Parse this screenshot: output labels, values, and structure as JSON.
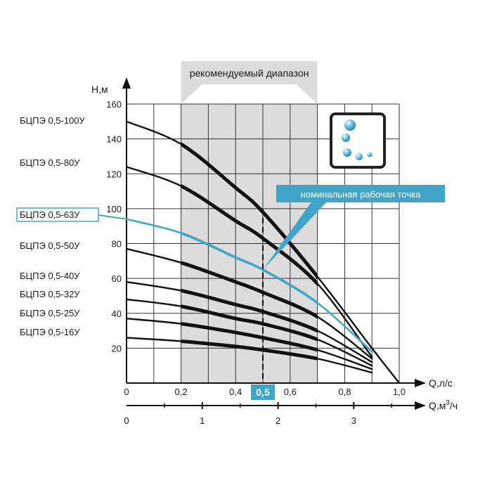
{
  "chart_data": {
    "type": "line",
    "recommended_range_label": "рекомендуемый диапазон",
    "recommended_range_x": [
      0.2,
      0.7
    ],
    "nominal_point_label": "номинальная рабочая точка",
    "nominal_flow": 0.5,
    "nominal_flow_label": "0,5",
    "y_axis": {
      "label": "Н,м",
      "range": [
        0,
        160
      ],
      "ticks": [
        "20",
        "40",
        "60",
        "80",
        "100",
        "120",
        "140",
        "160"
      ]
    },
    "x_axis": {
      "label": "Q,л/с",
      "range": [
        0,
        1.0
      ],
      "ticks": [
        "0",
        "0,2",
        "0,4",
        "0,6",
        "0,8",
        "1,0"
      ]
    },
    "x_axis2": {
      "label": "Q,м³/ч",
      "range": [
        0,
        3.6
      ],
      "ticks": [
        "0",
        "1",
        "2",
        "3"
      ]
    },
    "grid": true,
    "highlight_color": "#41a5c9",
    "series": [
      {
        "name": "БЦПЭ 0,5-100У",
        "x": [
          0,
          0.2,
          0.4,
          0.5,
          0.7,
          0.9,
          1.0
        ],
        "y": [
          150,
          137,
          112,
          98,
          61,
          20,
          0
        ],
        "highlight": false
      },
      {
        "name": "БЦПЭ 0,5-80У",
        "x": [
          0,
          0.2,
          0.4,
          0.5,
          0.7,
          0.9
        ],
        "y": [
          124,
          113,
          93,
          83,
          57,
          15
        ],
        "highlight": false
      },
      {
        "name": "БЦПЭ 0,5-63У",
        "x": [
          0,
          0.2,
          0.4,
          0.5,
          0.7,
          0.9
        ],
        "y": [
          94,
          86,
          72,
          65,
          46,
          18
        ],
        "highlight": true
      },
      {
        "name": "БЦПЭ 0,5-50У",
        "x": [
          0,
          0.2,
          0.4,
          0.5,
          0.7,
          0.9
        ],
        "y": [
          77,
          69,
          58,
          52,
          38,
          14
        ],
        "highlight": false
      },
      {
        "name": "БЦПЭ 0,5-40У",
        "x": [
          0,
          0.2,
          0.4,
          0.5,
          0.7,
          0.9
        ],
        "y": [
          58,
          53,
          45,
          41,
          30,
          12
        ],
        "highlight": false
      },
      {
        "name": "БЦПЭ 0,5-32У",
        "x": [
          0,
          0.2,
          0.4,
          0.5,
          0.7,
          0.9
        ],
        "y": [
          48,
          44,
          37,
          34,
          25,
          10
        ],
        "highlight": false
      },
      {
        "name": "БЦПЭ 0,5-25У",
        "x": [
          0,
          0.2,
          0.4,
          0.5,
          0.7,
          0.9
        ],
        "y": [
          37,
          34,
          29,
          26,
          19,
          8
        ],
        "highlight": false
      },
      {
        "name": "БЦПЭ 0,5-16У",
        "x": [
          0,
          0.2,
          0.4,
          0.5,
          0.7,
          0.9
        ],
        "y": [
          26,
          24,
          21,
          19,
          14,
          6
        ],
        "highlight": false
      }
    ]
  }
}
